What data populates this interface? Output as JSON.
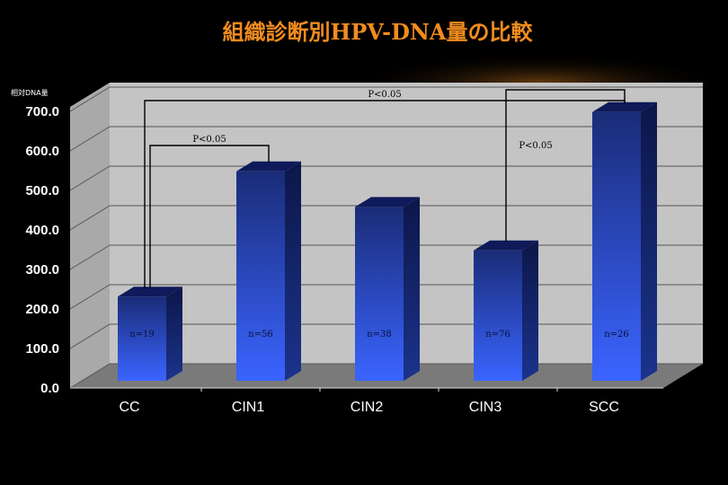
{
  "chart_data": {
    "type": "bar",
    "title": "組織診断別HPV-DNA量の比較",
    "ylabel": "相対DNA量",
    "xlabel": "",
    "categories": [
      "CC",
      "CIN1",
      "CIN2",
      "CIN3",
      "SCC"
    ],
    "series": [
      {
        "values": [
          213,
          530,
          440,
          330,
          680
        ]
      }
    ],
    "sample_sizes": [
      "n=19",
      "n=56",
      "n=38",
      "n=76",
      "n=26"
    ],
    "y_ticks": [
      "0.0",
      "100.0",
      "200.0",
      "300.0",
      "400.0",
      "500.0",
      "600.0",
      "700.0"
    ],
    "ylim": [
      0,
      700
    ],
    "grid": true,
    "significance": [
      {
        "from": "CC",
        "to": "CIN1",
        "label": "P<0.05"
      },
      {
        "from": "CC",
        "to": "SCC",
        "label": "P<0.05"
      },
      {
        "from": "CIN3",
        "to": "SCC",
        "label": "P<0.05"
      }
    ],
    "colors": {
      "title": "#F08C1E",
      "bar_top": "#1A2C78",
      "bar_bottom": "#3A64FF",
      "wall": "#C4C4C4",
      "floor": "#7A7A7A",
      "axis_text": "#FFFFFF"
    }
  }
}
